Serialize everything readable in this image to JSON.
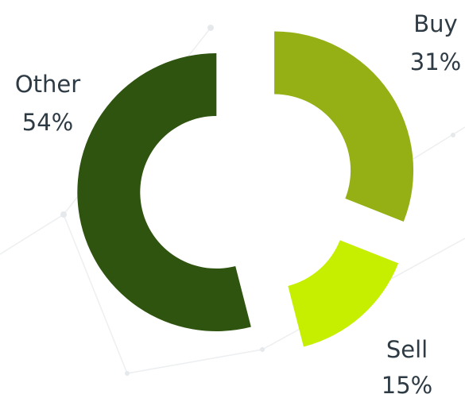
{
  "chart_data": {
    "type": "donut",
    "categories": [
      "Buy",
      "Sell",
      "Other"
    ],
    "values": [
      31,
      15,
      54
    ],
    "value_labels": [
      "31%",
      "15%",
      "54%"
    ],
    "colors": [
      "#94b014",
      "#c6ef00",
      "#2f5410"
    ]
  }
}
